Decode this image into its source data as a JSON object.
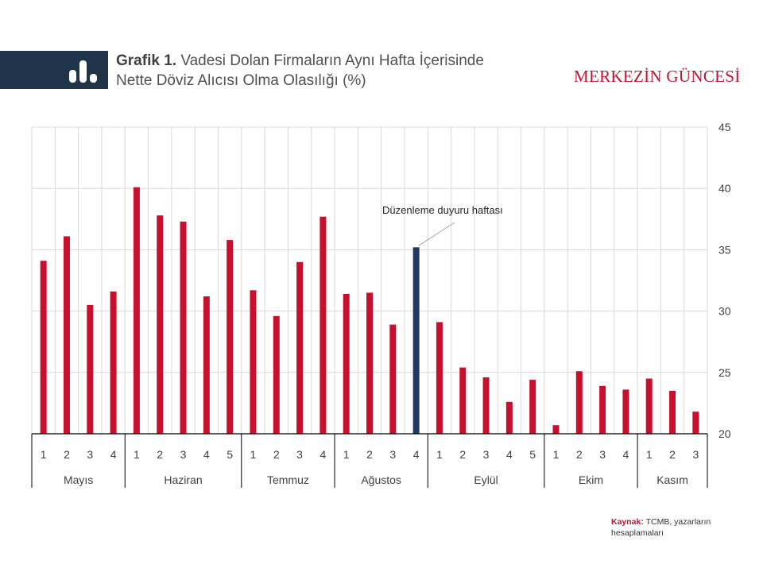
{
  "header": {
    "title_bold": "Grafik 1.",
    "title_line1": "Vadesi Dolan Firmaların Aynı Hafta İçerisinde",
    "title_line2": "Nette Döviz Alıcısı Olma Olasılığı (%)",
    "brand": "MERKEZİN GÜNCESİ"
  },
  "source": {
    "label": "Kaynak:",
    "text": "TCMB, yazarların hesaplamaları"
  },
  "colors": {
    "bar": "#c8102e",
    "highlight": "#1f3864",
    "grid": "#d9d9d9",
    "title_band": "#1f3349"
  },
  "icons": {
    "title_band": "bar-chart-icon"
  },
  "chart_data": {
    "type": "bar",
    "ylim": [
      20,
      45
    ],
    "yticks": [
      20,
      25,
      30,
      35,
      40,
      45
    ],
    "y_axis_position": "right",
    "grid": true,
    "categories": [
      "1",
      "2",
      "3",
      "4",
      "1",
      "2",
      "3",
      "4",
      "5",
      "1",
      "2",
      "3",
      "4",
      "1",
      "2",
      "3",
      "4",
      "1",
      "2",
      "3",
      "4",
      "5",
      "1",
      "2",
      "3",
      "4",
      "1",
      "2",
      "3"
    ],
    "values": [
      34.1,
      36.1,
      30.5,
      31.6,
      40.1,
      37.8,
      37.3,
      31.2,
      35.8,
      31.7,
      29.6,
      34.0,
      37.7,
      31.4,
      31.5,
      28.9,
      35.2,
      29.1,
      25.4,
      24.6,
      22.6,
      24.4,
      20.7,
      25.1,
      23.9,
      23.6,
      24.5,
      23.5,
      21.8
    ],
    "highlight_index": 16,
    "groups": [
      {
        "label": "Mayıs",
        "count": 4
      },
      {
        "label": "Haziran",
        "count": 5
      },
      {
        "label": "Temmuz",
        "count": 4
      },
      {
        "label": "Ağustos",
        "count": 4
      },
      {
        "label": "Eylül",
        "count": 5
      },
      {
        "label": "Ekim",
        "count": 4
      },
      {
        "label": "Kasım",
        "count": 3
      }
    ],
    "annotation": {
      "text": "Düzenleme duyuru haftası",
      "index": 16
    }
  }
}
